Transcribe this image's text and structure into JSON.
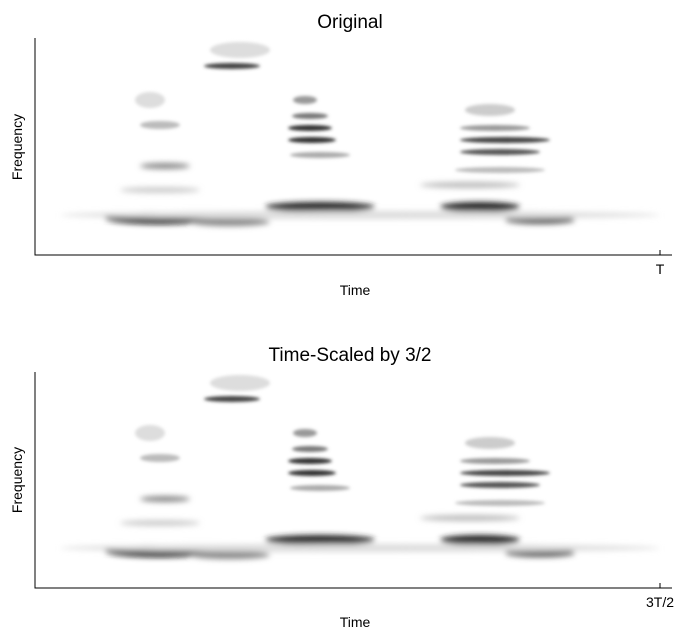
{
  "panels": [
    {
      "title": "Original",
      "xlabel": "Time",
      "ylabel": "Frequency",
      "xtick": "T"
    },
    {
      "title": "Time-Scaled by 3/2",
      "xlabel": "Time",
      "ylabel": "Frequency",
      "xtick": "3T/2"
    }
  ]
}
